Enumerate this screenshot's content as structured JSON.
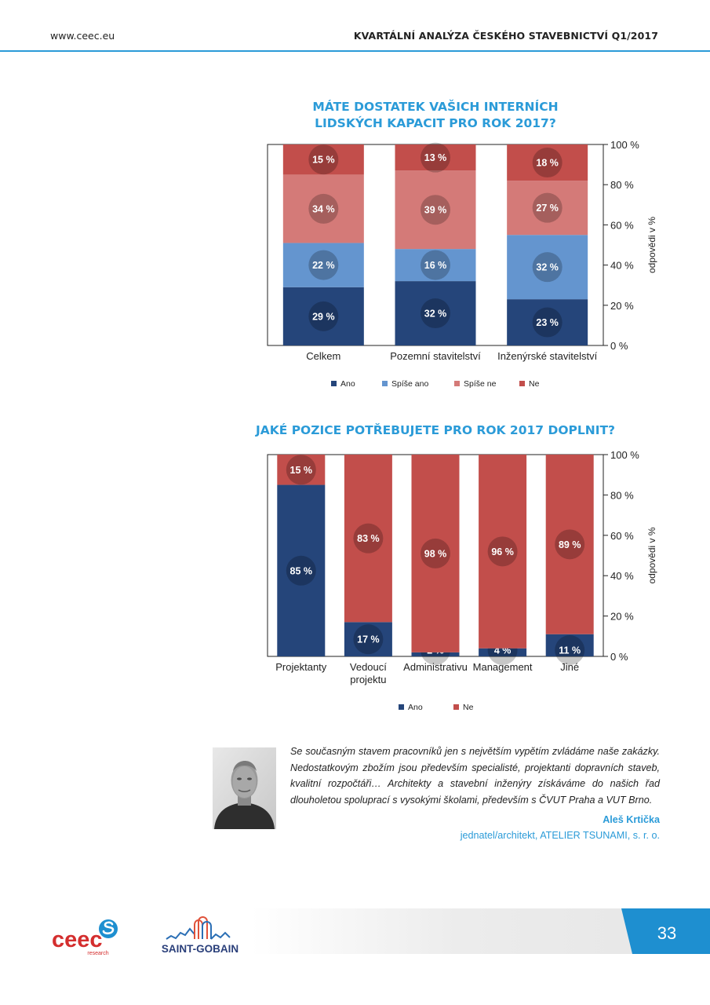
{
  "header": {
    "url": "www.ceec.eu",
    "title": "KVARTÁLNÍ ANALÝZA ČESKÉHO STAVEBNICTVÍ Q1/2017"
  },
  "colors": {
    "accent": "#2b9bd8",
    "ano": "#25457a",
    "spise_ano": "#6495cf",
    "spise_ne": "#d47a78",
    "ne": "#c24e4b"
  },
  "chart_data": [
    {
      "type": "bar",
      "stacked": true,
      "title": "MÁTE DOSTATEK VAŠICH INTERNÍCH LIDSKÝCH KAPACIT PRO ROK 2017?",
      "title_lines": [
        "MÁTE DOSTATEK VAŠICH INTERNÍCH",
        "LIDSKÝCH KAPACIT PRO ROK 2017?"
      ],
      "categories": [
        "Celkem",
        "Pozemní stavitelství",
        "Inženýrské stavitelství"
      ],
      "series": [
        {
          "name": "Ano",
          "color": "#25457a",
          "values": [
            29,
            32,
            23
          ]
        },
        {
          "name": "Spíše ano",
          "color": "#6495cf",
          "values": [
            22,
            16,
            32
          ]
        },
        {
          "name": "Spíše ne",
          "color": "#d47a78",
          "values": [
            34,
            39,
            27
          ]
        },
        {
          "name": "Ne",
          "color": "#c24e4b",
          "values": [
            15,
            13,
            18
          ]
        }
      ],
      "ylabel": "odpovědi v %",
      "ylim": [
        0,
        100
      ],
      "yticks": [
        "0 %",
        "20 %",
        "40 %",
        "60 %",
        "80 %",
        "100 %"
      ],
      "legend_position": "bottom",
      "value_suffix": " %"
    },
    {
      "type": "bar",
      "stacked": true,
      "title": "JAKÉ POZICE POTŘEBUJETE PRO ROK 2017 DOPLNIT?",
      "title_lines": [
        "JAKÉ POZICE POTŘEBUJETE PRO ROK 2017 DOPLNIT?"
      ],
      "categories": [
        "Projektanty",
        "Vedoucí projektu",
        "Administrativu",
        "Management",
        "Jiné"
      ],
      "category_lines": [
        [
          "Projektanty"
        ],
        [
          "Vedoucí",
          "projektu"
        ],
        [
          "Administrativu"
        ],
        [
          "Management"
        ],
        [
          "Jiné"
        ]
      ],
      "series": [
        {
          "name": "Ano",
          "color": "#25457a",
          "values": [
            85,
            17,
            2,
            4,
            11
          ]
        },
        {
          "name": "Ne",
          "color": "#c24e4b",
          "values": [
            15,
            83,
            98,
            96,
            89
          ]
        }
      ],
      "ylabel": "odpovědi v %",
      "ylim": [
        0,
        100
      ],
      "yticks": [
        "0 %",
        "20 %",
        "40 %",
        "60 %",
        "80 %",
        "100 %"
      ],
      "legend_position": "bottom",
      "value_suffix": " %"
    }
  ],
  "quote": {
    "text": "Se současným stavem pracovníků jen s největším vypětím zvládáme naše zakázky. Nedostatkovým zbožím jsou především specialisté, projektanti dopravních staveb, kvalitní rozpočtáři… Architekty a stavební inženýry získáváme do našich řad dlouholetou spoluprací s vysokými školami, především s ČVUT Praha a VUT Brno.",
    "author": "Aleš Krtička",
    "role": "jednatel/architekt, ATELIER TSUNAMI, s. r. o."
  },
  "footer": {
    "page_number": "33",
    "logo_ceec_text": "ceec",
    "logo_ceec_sub": "research",
    "logo_sg_text": "SAINT-GOBAIN"
  }
}
